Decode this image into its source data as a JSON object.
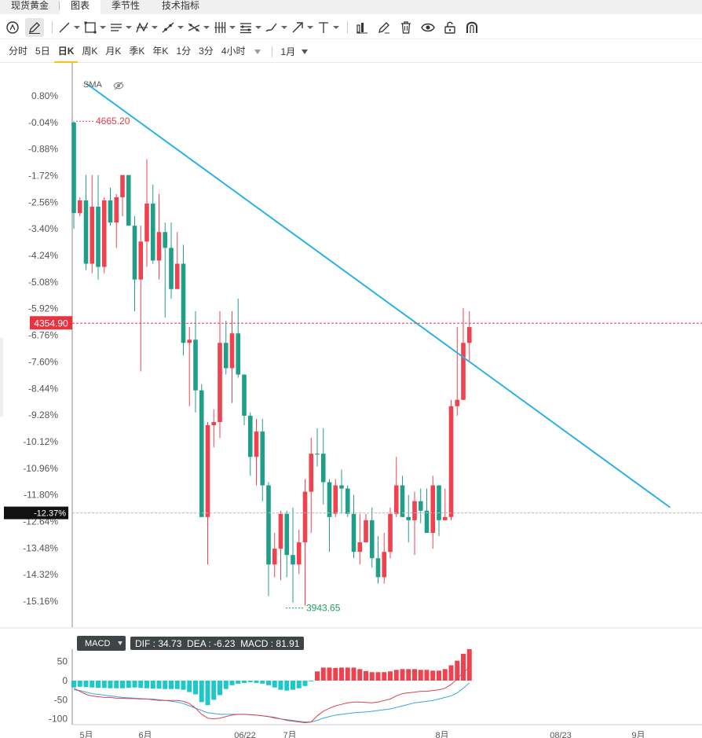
{
  "tabs": [
    {
      "label": "现货黄金",
      "active": false
    },
    {
      "label": "图表",
      "active": true
    },
    {
      "label": "季节性",
      "active": false
    },
    {
      "label": "技术指标",
      "active": false
    }
  ],
  "toolbar": {
    "tools": [
      {
        "icon": "cursor-circle-icon",
        "caret": false
      },
      {
        "icon": "pencil-icon",
        "caret": false,
        "selected": true
      },
      {
        "icon": "trend-line-icon",
        "caret": true
      },
      {
        "icon": "rectangle-icon",
        "caret": true
      },
      {
        "icon": "parallel-lines-icon",
        "caret": true
      },
      {
        "icon": "pattern-icon",
        "caret": true
      },
      {
        "icon": "ray-icon",
        "caret": true
      },
      {
        "icon": "cross-lines-icon",
        "caret": true
      },
      {
        "icon": "fib-vertical-icon",
        "caret": true
      },
      {
        "icon": "fib-horizontal-icon",
        "caret": true
      },
      {
        "icon": "brush-icon",
        "caret": true
      },
      {
        "icon": "arrow-icon",
        "caret": true
      },
      {
        "icon": "text-icon",
        "caret": true
      },
      {
        "icon": "bar-chart-icon",
        "caret": false
      },
      {
        "icon": "edit-icon",
        "caret": false
      },
      {
        "icon": "trash-icon",
        "caret": false
      },
      {
        "icon": "eye-icon",
        "caret": false
      },
      {
        "icon": "unlock-icon",
        "caret": false
      },
      {
        "icon": "magnet-icon",
        "caret": false
      }
    ]
  },
  "periods": {
    "items": [
      {
        "label": "分时",
        "active": false
      },
      {
        "label": "5日",
        "active": false
      },
      {
        "label": "日K",
        "active": true
      },
      {
        "label": "周K",
        "active": false
      },
      {
        "label": "月K",
        "active": false
      },
      {
        "label": "季K",
        "active": false
      },
      {
        "label": "年K",
        "active": false
      },
      {
        "label": "1分",
        "active": false
      },
      {
        "label": "3分",
        "active": false
      },
      {
        "label": "4小时",
        "active": false
      }
    ],
    "range_label": "1月"
  },
  "indicator": {
    "sma_label": "SMA",
    "macd_label": "MACD",
    "macd_values": "DIF : 34.73  DEA : -6.23  MACD : 81.91"
  },
  "chart_data": [
    {
      "type": "candlestick",
      "y_axis_ticks": [
        "0.80%",
        "-0.04%",
        "-0.88%",
        "-1.72%",
        "-2.56%",
        "-3.40%",
        "-4.24%",
        "-5.08%",
        "-5.92%",
        "-6.76%",
        "-7.60%",
        "-8.44%",
        "-9.28%",
        "-10.12%",
        "-10.96%",
        "-11.80%",
        "-12.64%",
        "-13.48%",
        "-14.32%",
        "-15.16%"
      ],
      "ylim_percent": [
        0.8,
        -15.16
      ],
      "max_label": "4665.20",
      "min_label": "3943.65",
      "current_price_label": "4354.90",
      "current_pct_label": "-12.37%",
      "current_pct": -12.37,
      "current_price_pct": -6.38,
      "colors": {
        "up": "#f0424e",
        "down": "#1f9e88",
        "trendline": "#29b2ea",
        "price_line": "#e04050"
      },
      "trendline": {
        "from_pct": 1.2,
        "to_pct": -12.2,
        "start_index": 2,
        "end_index": 98
      },
      "candles": [
        [
          -0.04,
          -2.9,
          -2.6,
          -0.0,
          -3.4
        ],
        [
          -2.9,
          -2.5,
          -2.4,
          -2.4,
          -3.0
        ],
        [
          -2.5,
          -4.5,
          -4.6,
          -1.7,
          -4.7
        ],
        [
          -4.5,
          -2.7,
          -2.6,
          -1.7,
          -4.8
        ],
        [
          -2.7,
          -4.6,
          -2.4,
          -1.7,
          -5.0
        ],
        [
          -4.6,
          -2.5,
          -2.5,
          -2.4,
          -4.8
        ],
        [
          -2.5,
          -3.2,
          -2.2,
          -2.1,
          -3.3
        ],
        [
          -3.2,
          -2.4,
          -2.4,
          -2.3,
          -4.0
        ],
        [
          -2.4,
          -1.7,
          -1.7,
          -1.7,
          -3.0
        ],
        [
          -1.7,
          -3.3,
          -2.2,
          -1.8,
          -3.3
        ],
        [
          -3.3,
          -5.0,
          -4.8,
          -3.0,
          -6.0
        ],
        [
          -5.0,
          -3.8,
          -3.9,
          -3.3,
          -7.9
        ],
        [
          -3.8,
          -2.6,
          -2.6,
          -1.2,
          -4.6
        ],
        [
          -2.6,
          -4.4,
          -4.4,
          -2.0,
          -4.5
        ],
        [
          -4.4,
          -3.5,
          -3.5,
          -2.3,
          -5.0
        ],
        [
          -3.5,
          -4.0,
          -4.6,
          -3.2,
          -6.2
        ],
        [
          -4.0,
          -5.3,
          -5.3,
          -3.2,
          -5.6
        ],
        [
          -5.3,
          -4.5,
          -4.5,
          -3.5,
          -5.3
        ],
        [
          -4.5,
          -7.0,
          -6.8,
          -3.9,
          -7.4
        ],
        [
          -7.0,
          -6.9,
          -6.9,
          -6.5,
          -9.0
        ],
        [
          -6.9,
          -8.5,
          -8.5,
          -6.0,
          -9.2
        ],
        [
          -8.5,
          -12.5,
          -12.5,
          -8.3,
          -12.5
        ],
        [
          -12.5,
          -9.6,
          -9.6,
          -9.5,
          -14.0
        ],
        [
          -9.6,
          -9.5,
          -9.5,
          -9.1,
          -10.3
        ],
        [
          -9.5,
          -7.0,
          -7.0,
          -6.0,
          -10.0
        ],
        [
          -7.0,
          -7.8,
          -7.8,
          -6.3,
          -8.0
        ],
        [
          -7.8,
          -6.7,
          -6.7,
          -6.0,
          -8.9
        ],
        [
          -6.7,
          -8.0,
          -8.0,
          -5.6,
          -8.1
        ],
        [
          -8.0,
          -9.3,
          -8.6,
          -8.0,
          -9.6
        ],
        [
          -9.3,
          -10.6,
          -10.5,
          -9.2,
          -11.2
        ],
        [
          -10.6,
          -9.8,
          -9.8,
          -9.4,
          -11.5
        ],
        [
          -9.8,
          -11.5,
          -11.5,
          -9.4,
          -12.0
        ],
        [
          -11.5,
          -14.0,
          -14.0,
          -11.4,
          -15.0
        ],
        [
          -14.0,
          -13.5,
          -13.3,
          -13.0,
          -14.4
        ],
        [
          -13.5,
          -12.4,
          -12.4,
          -12.3,
          -14.5
        ],
        [
          -12.4,
          -13.7,
          -13.7,
          -12.3,
          -14.4
        ],
        [
          -13.7,
          -14.0,
          -14.0,
          -12.2,
          -15.2
        ],
        [
          -14.0,
          -13.3,
          -13.3,
          -12.9,
          -14.3
        ],
        [
          -13.3,
          -11.7,
          -11.7,
          -11.3,
          -15.3
        ],
        [
          -11.7,
          -10.5,
          -10.5,
          -10.0,
          -13.0
        ],
        [
          -10.5,
          -10.5,
          -10.2,
          -9.7,
          -10.9
        ],
        [
          -10.5,
          -11.4,
          -10.2,
          -9.7,
          -12.1
        ],
        [
          -11.4,
          -12.5,
          -12.4,
          -11.3,
          -13.6
        ],
        [
          -12.4,
          -11.5,
          -11.5,
          -11.3,
          -12.5
        ],
        [
          -11.5,
          -11.6,
          -11.4,
          -11.0,
          -12.4
        ],
        [
          -11.6,
          -12.4,
          -12.3,
          -11.5,
          -12.5
        ],
        [
          -12.4,
          -13.6,
          -13.6,
          -11.8,
          -13.8
        ],
        [
          -13.6,
          -13.3,
          -13.2,
          -12.4,
          -14.0
        ],
        [
          -13.3,
          -12.6,
          -12.6,
          -12.4,
          -13.2
        ],
        [
          -12.6,
          -13.8,
          -13.8,
          -12.2,
          -14.1
        ],
        [
          -13.8,
          -14.4,
          -14.3,
          -13.1,
          -14.6
        ],
        [
          -14.4,
          -13.6,
          -13.6,
          -13.0,
          -14.6
        ],
        [
          -13.6,
          -12.4,
          -12.4,
          -12.2,
          -13.8
        ],
        [
          -12.4,
          -11.5,
          -11.5,
          -10.6,
          -12.5
        ],
        [
          -11.5,
          -12.5,
          -12.5,
          -11.2,
          -12.5
        ],
        [
          -12.5,
          -12.6,
          -12.3,
          -11.8,
          -13.3
        ],
        [
          -12.6,
          -12.0,
          -12.0,
          -11.7,
          -13.7
        ],
        [
          -12.0,
          -12.3,
          -12.3,
          -11.6,
          -12.7
        ],
        [
          -12.3,
          -13.0,
          -13.0,
          -11.6,
          -13.0
        ],
        [
          -13.0,
          -11.5,
          -11.5,
          -11.2,
          -13.5
        ],
        [
          -11.5,
          -12.6,
          -12.6,
          -11.5,
          -13.1
        ],
        [
          -12.6,
          -12.5,
          -12.0,
          -11.6,
          -12.6
        ],
        [
          -12.5,
          -9.0,
          -9.0,
          -8.8,
          -12.6
        ],
        [
          -9.0,
          -8.8,
          -8.5,
          -6.5,
          -9.3
        ],
        [
          -8.8,
          -7.0,
          -7.0,
          -5.9,
          -8.8
        ],
        [
          -7.0,
          -6.5,
          -6.3,
          -6.0,
          -7.6
        ]
      ]
    },
    {
      "type": "bar+line",
      "title": "MACD",
      "y_axis_ticks": [
        "50",
        "0",
        "-50",
        "-100"
      ],
      "ylim": [
        -115,
        82
      ],
      "x_ticks": [
        "5月",
        "6月",
        "06/22",
        "7月",
        "8月",
        "08/23",
        "9月"
      ],
      "histogram": [
        -18,
        -16,
        -17,
        -18,
        -19,
        -19,
        -20,
        -20,
        -20,
        -19,
        -18,
        -19,
        -20,
        -21,
        -21,
        -22,
        -22,
        -22,
        -24,
        -30,
        -36,
        -56,
        -64,
        -50,
        -38,
        -22,
        -12,
        -8,
        -6,
        -4,
        -6,
        -8,
        -12,
        -18,
        -24,
        -26,
        -24,
        -20,
        -14,
        -2,
        24,
        34,
        34,
        33,
        34,
        34,
        34,
        30,
        25,
        22,
        22,
        22,
        24,
        28,
        30,
        30,
        30,
        28,
        28,
        26,
        26,
        30,
        40,
        52,
        70,
        82
      ],
      "dif": [
        -20,
        -28,
        -36,
        -40,
        -42,
        -44,
        -44,
        -46,
        -46,
        -47,
        -47,
        -48,
        -48,
        -50,
        -52,
        -52,
        -52,
        -52,
        -54,
        -60,
        -72,
        -88,
        -98,
        -100,
        -98,
        -94,
        -90,
        -88,
        -88,
        -89,
        -90,
        -92,
        -94,
        -96,
        -100,
        -104,
        -106,
        -108,
        -110,
        -108,
        -92,
        -80,
        -72,
        -66,
        -62,
        -58,
        -56,
        -56,
        -57,
        -58,
        -56,
        -52,
        -48,
        -40,
        -34,
        -32,
        -30,
        -28,
        -28,
        -26,
        -24,
        -20,
        -10,
        4,
        22,
        34
      ],
      "dea": [
        -24,
        -26,
        -30,
        -34,
        -36,
        -38,
        -40,
        -42,
        -44,
        -45,
        -46,
        -47,
        -48,
        -48,
        -50,
        -52,
        -54,
        -56,
        -60,
        -66,
        -72,
        -78,
        -84,
        -86,
        -88,
        -88,
        -88,
        -88,
        -88,
        -89,
        -90,
        -92,
        -94,
        -98,
        -100,
        -102,
        -104,
        -106,
        -108,
        -108,
        -104,
        -98,
        -94,
        -90,
        -88,
        -86,
        -84,
        -83,
        -82,
        -80,
        -78,
        -76,
        -74,
        -70,
        -66,
        -62,
        -58,
        -56,
        -54,
        -52,
        -48,
        -44,
        -40,
        -32,
        -20,
        -6
      ]
    }
  ]
}
